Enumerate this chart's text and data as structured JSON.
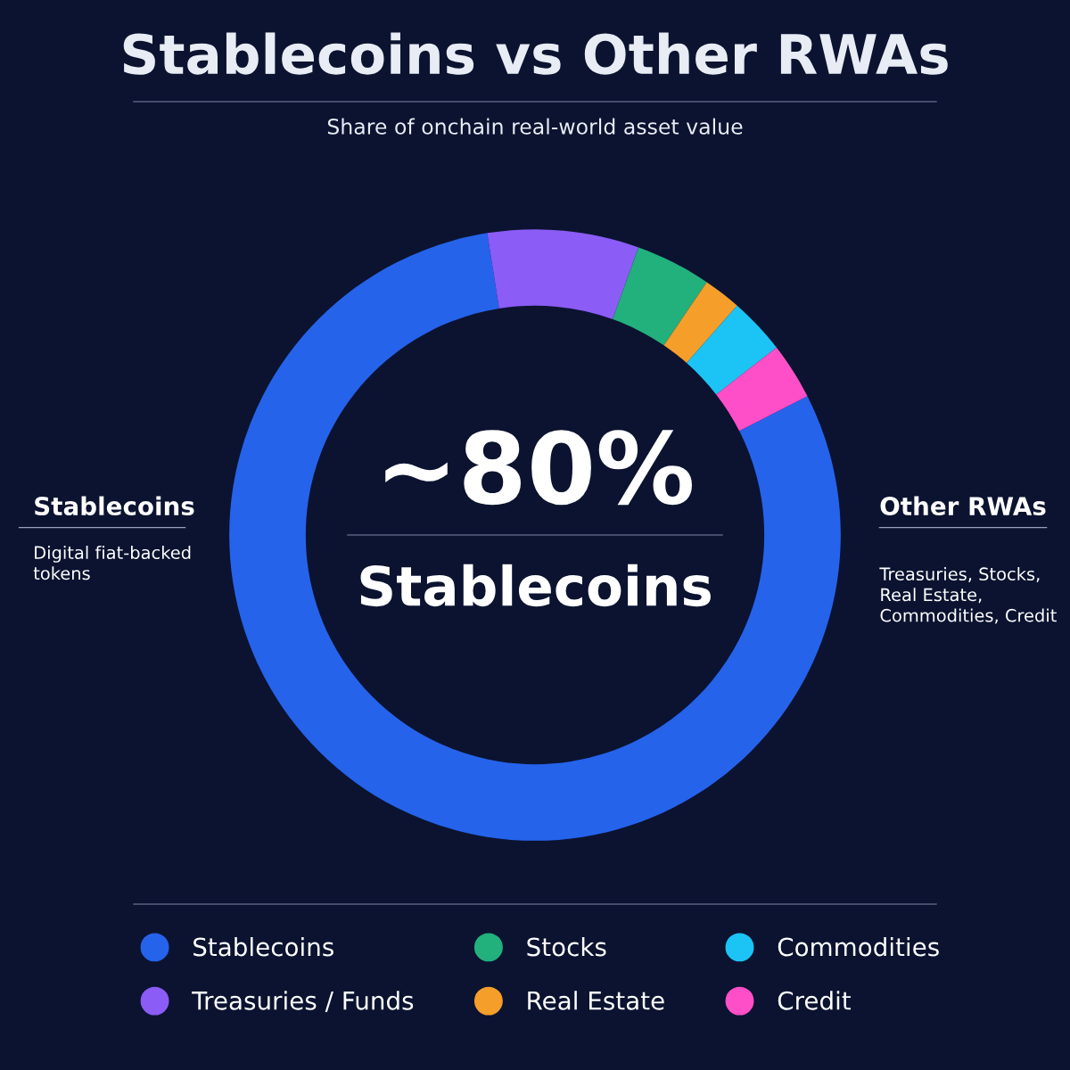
{
  "chart_data": {
    "type": "donut",
    "title": "Stablecoins vs Other RWAs",
    "subtitle": "Share of onchain real-world asset value",
    "categories": [
      "Stablecoins",
      "Treasuries / Funds",
      "Stocks",
      "Real Estate",
      "Commodities",
      "Credit"
    ],
    "values": [
      80,
      8,
      4,
      2,
      3,
      3
    ],
    "colors": [
      "#2563eb",
      "#8b5cf6",
      "#22b07d",
      "#f59e2a",
      "#1cc4f5",
      "#ff4fc8"
    ],
    "annotations": [
      "~80%",
      "Stablecoins",
      "Stablecoins",
      "Digital fiat-backed tokens",
      "Other RWAs",
      "Treasuries, Stocks, Real Estate, Commodities, Credit"
    ],
    "legend": "bottom"
  }
}
